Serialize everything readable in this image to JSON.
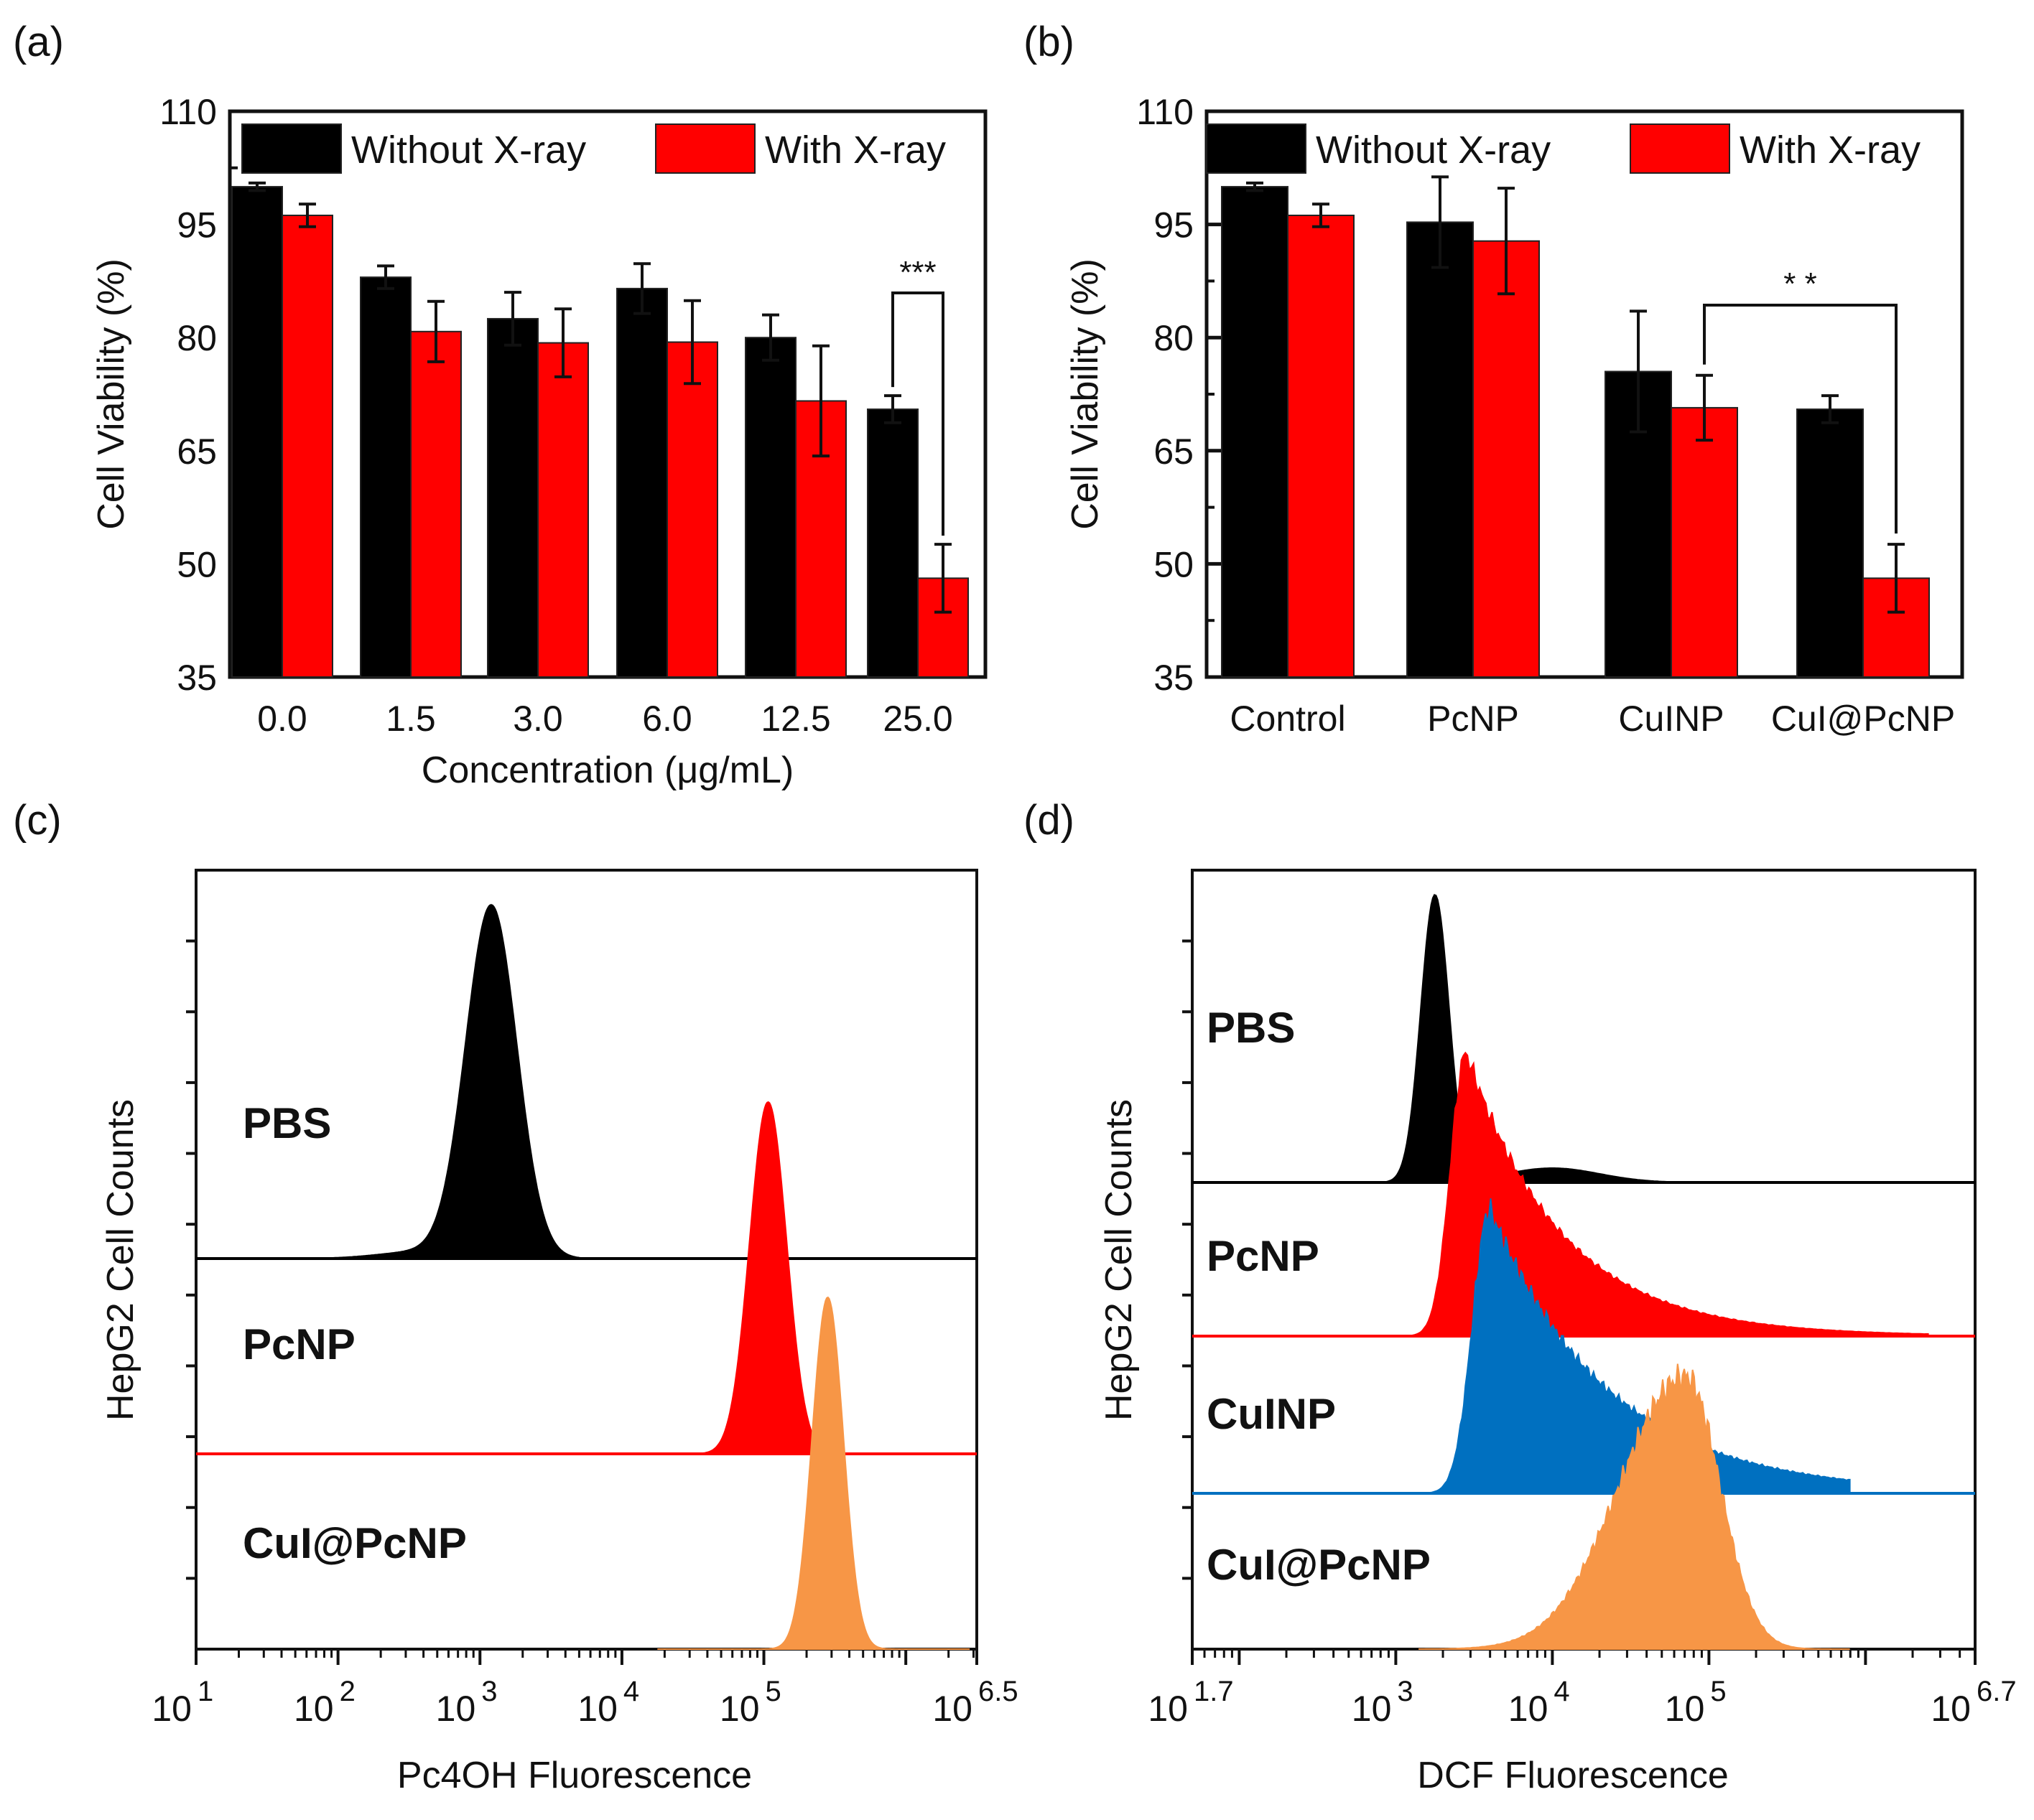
{
  "colors": {
    "black_series": "#000000",
    "red_series": "#ff0000",
    "blue_series": "#0070c0",
    "orange_series": "#f79646",
    "axis": "#111111"
  },
  "chart_data": [
    {
      "panel": "(a)",
      "type": "bar",
      "xlabel": "Concentration (μg/mL)",
      "ylabel": "Cell Viability (%)",
      "ylim": [
        35,
        110
      ],
      "yticks": [
        "35",
        "50",
        "65",
        "80",
        "95",
        "110"
      ],
      "legend": [
        "Without X-ray",
        "With X-ray"
      ],
      "legend_position": "top",
      "categories": [
        "0.0",
        "1.5",
        "3.0",
        "6.0",
        "12.5",
        "25.0"
      ],
      "series": [
        {
          "name": "Without X-ray",
          "values": [
            100,
            88,
            82.5,
            86.5,
            80,
            70.5
          ],
          "errors": [
            0.5,
            1.5,
            3.5,
            3.3,
            3.0,
            1.8
          ]
        },
        {
          "name": "With X-ray",
          "values": [
            96.2,
            80.8,
            79.3,
            79.4,
            71.6,
            48.1
          ],
          "errors": [
            1.5,
            4.0,
            4.5,
            5.5,
            7.3,
            4.5
          ]
        }
      ],
      "significance": [
        {
          "label": "***",
          "category": "25.0"
        }
      ]
    },
    {
      "panel": "(b)",
      "type": "bar",
      "xlabel": "",
      "ylabel": "Cell Viability (%)",
      "ylim": [
        35,
        110
      ],
      "yticks": [
        "35",
        "50",
        "65",
        "80",
        "95",
        "110"
      ],
      "legend": [
        "Without X-ray",
        "With X-ray"
      ],
      "legend_position": "top",
      "categories": [
        "Control",
        "PcNP",
        "CuINP",
        "CuI@PcNP"
      ],
      "series": [
        {
          "name": "Without X-ray",
          "values": [
            100,
            95.3,
            75.5,
            70.5
          ],
          "errors": [
            0.5,
            6.0,
            8.0,
            1.8
          ]
        },
        {
          "name": "With X-ray",
          "values": [
            96.2,
            92.8,
            70.7,
            48.1
          ],
          "errors": [
            1.5,
            7.0,
            4.3,
            4.5
          ]
        }
      ],
      "significance": [
        {
          "label": "* *",
          "from": "CuINP",
          "to": "CuI@PcNP"
        }
      ]
    },
    {
      "panel": "(c)",
      "type": "area",
      "subtype": "flow-cytometry histogram (log x)",
      "xlabel": "Pc4OH Fluorescence",
      "ylabel": "HepG2 Cell Counts",
      "xlim_log10": [
        1,
        6.5
      ],
      "xticks": [
        {
          "base": "10",
          "exp": "1"
        },
        {
          "base": "10",
          "exp": "2"
        },
        {
          "base": "10",
          "exp": "3"
        },
        {
          "base": "10",
          "exp": "4"
        },
        {
          "base": "10",
          "exp": "5"
        },
        {
          "base": "10",
          "exp": "6.5"
        }
      ],
      "series": [
        {
          "name": "PBS",
          "color": "#000000",
          "peak_log10": 3.08,
          "relative_height": 1.0
        },
        {
          "name": "PcNP",
          "color": "#ff0000",
          "peak_log10": 5.03,
          "relative_height": 1.0
        },
        {
          "name": "CuI@PcNP",
          "color": "#f79646",
          "peak_log10": 5.45,
          "relative_height": 1.0
        }
      ]
    },
    {
      "panel": "(d)",
      "type": "area",
      "subtype": "flow-cytometry histogram (log x)",
      "xlabel": "DCF Fluorescence",
      "ylabel": "HepG2 Cell Counts",
      "xlim_log10": [
        1.7,
        6.7
      ],
      "xticks": [
        {
          "base": "10",
          "exp": "1.7"
        },
        {
          "base": "10",
          "exp": "3"
        },
        {
          "base": "10",
          "exp": "4"
        },
        {
          "base": "10",
          "exp": "5"
        },
        {
          "base": "10",
          "exp": "6.7"
        }
      ],
      "series": [
        {
          "name": "PBS",
          "color": "#000000",
          "peak_log10": 3.25
        },
        {
          "name": "PcNP",
          "color": "#ff0000",
          "peak_log10": 3.45
        },
        {
          "name": "CuINP",
          "color": "#0070c0",
          "peak_log10": 3.6
        },
        {
          "name": "CuI@PcNP",
          "color": "#f79646",
          "peak_log10": 4.85
        }
      ]
    }
  ]
}
